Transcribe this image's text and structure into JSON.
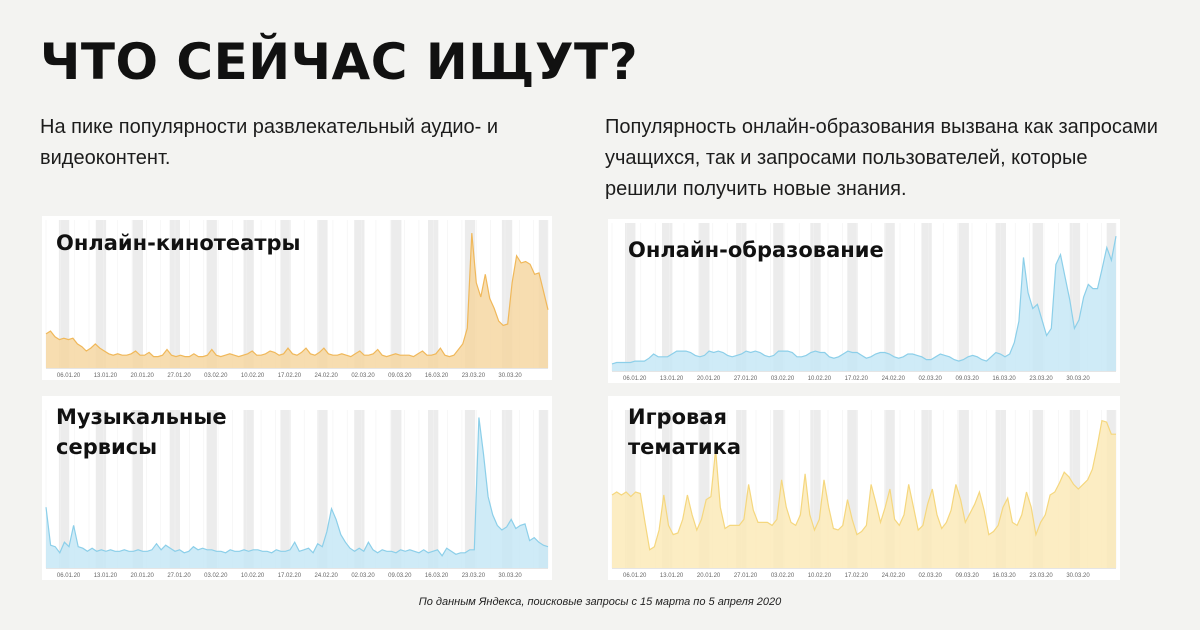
{
  "title": "ЧТО СЕЙЧАС ИЩУТ?",
  "left_description": "На пике популярности развлекательный аудио- и видеоконтент.",
  "right_description": "Популярность онлайн-образования вызвана как запросами учащихся, так и запросами пользователей, которые решили получить новые знания.",
  "footnote": "По данным Яндекса, поисковые запросы с 15 марта по 5 апреля 2020",
  "colors": {
    "orange_line": "#f0b85a",
    "orange_fill": "#f6d7a2",
    "blue_line": "#8ccfe9",
    "blue_fill": "#c7e8f6",
    "yellow_line": "#f5d77e",
    "yellow_fill": "#fbeab8"
  },
  "chart_data": [
    {
      "type": "area",
      "title": "Онлайн-кинотеатры",
      "tick_labels": [
        "06.01.20",
        "13.01.20",
        "20.01.20",
        "27.01.20",
        "03.02.20",
        "10.02.20",
        "17.02.20",
        "24.02.20",
        "02.03.20",
        "09.03.20",
        "16.03.20",
        "23.03.20",
        "30.03.20"
      ],
      "ylim": [
        0,
        100
      ],
      "values": [
        24,
        26,
        22,
        20,
        21,
        20,
        21,
        17,
        15,
        12,
        14,
        17,
        14,
        12,
        10,
        9,
        10,
        9,
        9,
        10,
        12,
        9,
        9,
        11,
        8,
        8,
        9,
        13,
        9,
        8,
        9,
        8,
        8,
        10,
        8,
        8,
        9,
        13,
        9,
        8,
        9,
        10,
        9,
        8,
        9,
        10,
        12,
        9,
        9,
        10,
        12,
        11,
        9,
        10,
        14,
        10,
        9,
        11,
        14,
        10,
        9,
        11,
        14,
        10,
        9,
        9,
        10,
        9,
        8,
        10,
        12,
        9,
        9,
        10,
        13,
        9,
        8,
        9,
        10,
        9,
        9,
        9,
        8,
        10,
        12,
        9,
        9,
        10,
        14,
        9,
        8,
        9,
        13,
        17,
        28,
        95,
        60,
        50,
        66,
        49,
        42,
        33,
        30,
        31,
        60,
        79,
        74,
        75,
        73,
        66,
        67,
        54,
        41
      ]
    },
    {
      "type": "area",
      "title": "Музыкальные сервисы",
      "tick_labels": [
        "06.01.20",
        "13.01.20",
        "20.01.20",
        "27.01.20",
        "03.02.20",
        "10.02.20",
        "17.02.20",
        "24.02.20",
        "02.03.20",
        "09.03.20",
        "16.03.20",
        "23.03.20",
        "30.03.20"
      ],
      "ylim": [
        0,
        100
      ],
      "values": [
        40,
        15,
        14,
        10,
        17,
        14,
        28,
        14,
        13,
        11,
        13,
        11,
        12,
        11,
        12,
        11,
        11,
        12,
        11,
        11,
        12,
        11,
        11,
        12,
        16,
        12,
        15,
        13,
        11,
        12,
        10,
        11,
        14,
        12,
        13,
        12,
        12,
        11,
        11,
        10,
        12,
        11,
        11,
        12,
        11,
        12,
        12,
        11,
        11,
        10,
        12,
        11,
        11,
        12,
        17,
        11,
        12,
        13,
        10,
        16,
        14,
        24,
        39,
        32,
        22,
        17,
        13,
        11,
        13,
        11,
        17,
        12,
        10,
        12,
        11,
        11,
        10,
        12,
        11,
        12,
        11,
        10,
        12,
        10,
        11,
        12,
        8,
        13,
        11,
        9,
        10,
        10,
        12,
        12,
        99,
        75,
        47,
        35,
        28,
        25,
        27,
        32,
        26,
        28,
        29,
        18,
        20,
        17,
        15,
        14
      ]
    },
    {
      "type": "area",
      "title": "Онлайн-образование",
      "tick_labels": [
        "06.01.20",
        "13.01.20",
        "20.01.20",
        "27.01.20",
        "03.02.20",
        "10.02.20",
        "17.02.20",
        "24.02.20",
        "02.03.20",
        "09.03.20",
        "16.03.20",
        "23.03.20",
        "30.03.20"
      ],
      "ylim": [
        0,
        100
      ],
      "values": [
        5,
        6,
        6,
        6,
        6,
        7,
        7,
        7,
        9,
        12,
        10,
        10,
        10,
        12,
        14,
        14,
        14,
        13,
        11,
        10,
        11,
        14,
        13,
        14,
        13,
        11,
        10,
        11,
        12,
        14,
        13,
        14,
        13,
        11,
        10,
        11,
        14,
        14,
        14,
        13,
        10,
        10,
        11,
        13,
        14,
        13,
        13,
        10,
        9,
        10,
        12,
        14,
        13,
        13,
        11,
        9,
        10,
        12,
        13,
        13,
        12,
        10,
        9,
        10,
        12,
        12,
        11,
        10,
        8,
        8,
        10,
        12,
        11,
        10,
        8,
        7,
        8,
        10,
        11,
        10,
        8,
        7,
        10,
        13,
        12,
        10,
        12,
        20,
        35,
        80,
        55,
        44,
        47,
        36,
        25,
        30,
        75,
        82,
        66,
        50,
        30,
        36,
        52,
        61,
        58,
        58,
        72,
        87,
        78,
        95
      ]
    },
    {
      "type": "area",
      "title": "Игровая тематика",
      "tick_labels": [
        "06.01.20",
        "13.01.20",
        "20.01.20",
        "27.01.20",
        "03.02.20",
        "10.02.20",
        "17.02.20",
        "24.02.20",
        "02.03.20",
        "09.03.20",
        "16.03.20",
        "23.03.20",
        "30.03.20"
      ],
      "ylim": [
        0,
        100
      ],
      "values": [
        48,
        50,
        48,
        50,
        47,
        50,
        49,
        30,
        12,
        14,
        25,
        48,
        28,
        22,
        23,
        32,
        48,
        35,
        25,
        32,
        45,
        47,
        78,
        40,
        26,
        28,
        28,
        28,
        32,
        55,
        38,
        30,
        30,
        30,
        28,
        32,
        58,
        40,
        30,
        28,
        35,
        62,
        35,
        25,
        32,
        58,
        40,
        26,
        25,
        28,
        45,
        32,
        22,
        24,
        28,
        55,
        43,
        30,
        40,
        52,
        32,
        28,
        35,
        55,
        40,
        25,
        28,
        42,
        52,
        35,
        26,
        30,
        38,
        55,
        45,
        30,
        36,
        42,
        50,
        38,
        22,
        24,
        28,
        40,
        46,
        30,
        28,
        35,
        50,
        40,
        22,
        30,
        35,
        48,
        50,
        56,
        63,
        60,
        55,
        52,
        55,
        58,
        65,
        80,
        97,
        96,
        88,
        88
      ]
    }
  ]
}
